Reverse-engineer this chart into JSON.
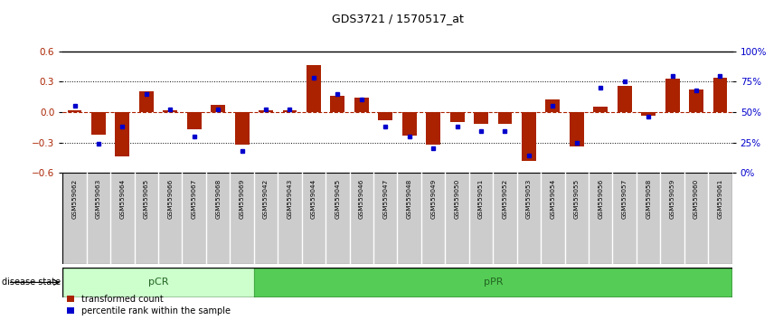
{
  "title": "GDS3721 / 1570517_at",
  "samples": [
    "GSM559062",
    "GSM559063",
    "GSM559064",
    "GSM559065",
    "GSM559066",
    "GSM559067",
    "GSM559068",
    "GSM559069",
    "GSM559042",
    "GSM559043",
    "GSM559044",
    "GSM559045",
    "GSM559046",
    "GSM559047",
    "GSM559048",
    "GSM559049",
    "GSM559050",
    "GSM559051",
    "GSM559052",
    "GSM559053",
    "GSM559054",
    "GSM559055",
    "GSM559056",
    "GSM559057",
    "GSM559058",
    "GSM559059",
    "GSM559060",
    "GSM559061"
  ],
  "bar_values": [
    0.02,
    -0.22,
    -0.44,
    0.2,
    0.02,
    -0.17,
    0.07,
    -0.32,
    0.02,
    0.02,
    0.46,
    0.16,
    0.14,
    -0.08,
    -0.23,
    -0.32,
    -0.1,
    -0.12,
    -0.12,
    -0.48,
    0.12,
    -0.34,
    0.05,
    0.26,
    -0.04,
    0.33,
    0.22,
    0.34
  ],
  "dot_values": [
    55,
    24,
    38,
    65,
    52,
    30,
    52,
    18,
    52,
    52,
    78,
    65,
    60,
    38,
    30,
    20,
    38,
    34,
    34,
    14,
    55,
    25,
    70,
    75,
    46,
    80,
    68,
    80
  ],
  "pcr_count": 8,
  "ppr_count": 20,
  "ylim": [
    -0.6,
    0.6
  ],
  "yticks_left": [
    -0.6,
    -0.3,
    0.0,
    0.3,
    0.6
  ],
  "yticks_right": [
    0,
    25,
    50,
    75,
    100
  ],
  "bar_color": "#aa2200",
  "dot_color": "#0000cc",
  "pcr_color": "#ccffcc",
  "ppr_color": "#55cc55",
  "bg_color": "#cccccc",
  "legend_red": "transformed count",
  "legend_blue": "percentile rank within the sample",
  "disease_state_label": "disease state"
}
